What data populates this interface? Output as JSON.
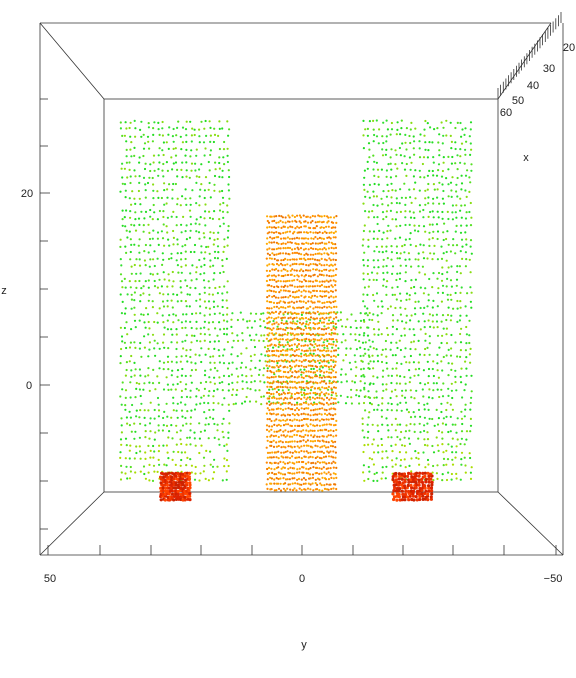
{
  "chart_data": {
    "type": "scatter",
    "title": "",
    "xlabel": "x",
    "ylabel": "y",
    "zlabel": "z",
    "projection": "3d",
    "view": "front (y horizontal, z vertical, x depth)",
    "y_ticks": [
      "50",
      "0",
      "−50"
    ],
    "z_ticks": [
      "20",
      "0"
    ],
    "x_ticks": [
      "20",
      "30",
      "40",
      "50",
      "60"
    ],
    "ylim": [
      50,
      -50
    ],
    "zlim": [
      -13,
      30
    ],
    "xlim": [
      10,
      60
    ],
    "grid": false,
    "legend": "none",
    "colormap": [
      "#22dd22",
      "#aadd00",
      "#ffaa00",
      "#ff5500",
      "#dd2200"
    ],
    "color_encodes": "depth (x), near = red, far = green",
    "groups": [
      {
        "name": "",
        "color": "green",
        "y_range": [
          36,
          14
        ],
        "z_range": [
          -10,
          28
        ],
        "x_depth": 55
      },
      {
        "name": "",
        "color": "green",
        "y_range": [
          -12,
          -34
        ],
        "z_range": [
          -10,
          28
        ],
        "x_depth": 55
      },
      {
        "name": "",
        "color": "green",
        "y_range": [
          14,
          -14
        ],
        "z_range": [
          -2,
          8
        ],
        "x_depth": 50
      },
      {
        "name": "",
        "color": "orange",
        "y_range": [
          7,
          -7
        ],
        "z_range": [
          -11,
          18
        ],
        "x_depth": 30
      },
      {
        "name": "",
        "color": "red",
        "y_range": [
          28,
          22
        ],
        "z_range": [
          -12,
          -9
        ],
        "x_depth": 20
      },
      {
        "name": "",
        "color": "red",
        "y_range": [
          -18,
          -26
        ],
        "z_range": [
          -12,
          -9
        ],
        "x_depth": 20
      }
    ]
  }
}
